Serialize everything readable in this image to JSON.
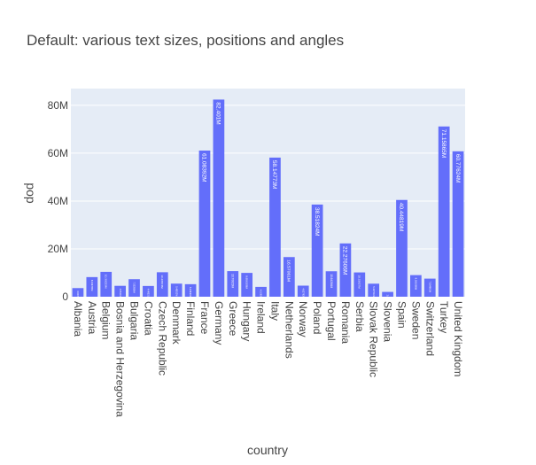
{
  "chart_data": {
    "type": "bar",
    "title": "Default: various text sizes, positions and angles",
    "xlabel": "country",
    "ylabel": "pop",
    "ylim": [
      0,
      87000000
    ],
    "yticks": [
      0,
      20000000,
      40000000,
      60000000,
      80000000
    ],
    "ytick_labels": [
      "0",
      "20M",
      "40M",
      "60M",
      "80M"
    ],
    "grid": true,
    "colors": {
      "bar": "#636efa",
      "plot_bg": "#e5ecf6",
      "grid": "#ffffff",
      "text": "#444444",
      "bar_label": "#ffffff"
    },
    "categories": [
      "Albania",
      "Austria",
      "Belgium",
      "Bosnia and Herzegovina",
      "Bulgaria",
      "Croatia",
      "Czech Republic",
      "Denmark",
      "Finland",
      "France",
      "Germany",
      "Greece",
      "Hungary",
      "Ireland",
      "Italy",
      "Netherlands",
      "Norway",
      "Poland",
      "Portugal",
      "Romania",
      "Serbia",
      "Slovak Republic",
      "Slovenia",
      "Spain",
      "Sweden",
      "Switzerland",
      "Turkey",
      "United Kingdom"
    ],
    "values": [
      3600523,
      8199783,
      10392226,
      4552198,
      7322858,
      4493312,
      10228744,
      5468120,
      5238460,
      61083916,
      82400996,
      10706290,
      9956108,
      4109086,
      58147733,
      16570613,
      4627926,
      38518241,
      10642836,
      22276056,
      10150265,
      5447502,
      2009245,
      40448191,
      9031088,
      7554661,
      71158647,
      60776238
    ],
    "bar_labels": [
      "3.600523M",
      "8.199783M",
      "10.39223M",
      "4.552198M",
      "7.322858M",
      "4.493312M",
      "10.22874M",
      "5.46812M",
      "5.23846M",
      "61.08392M",
      "82.401M",
      "10.70629M",
      "9.956108M",
      "4.109086M",
      "58.14773M",
      "16.57061M",
      "4.627926M",
      "38.51824M",
      "10.64284M",
      "22.27606M",
      "10.15027M",
      "5.447502M",
      "2.009245M",
      "40.44819M",
      "9.031088M",
      "7.554661M",
      "71.15865M",
      "60.77624M"
    ]
  }
}
